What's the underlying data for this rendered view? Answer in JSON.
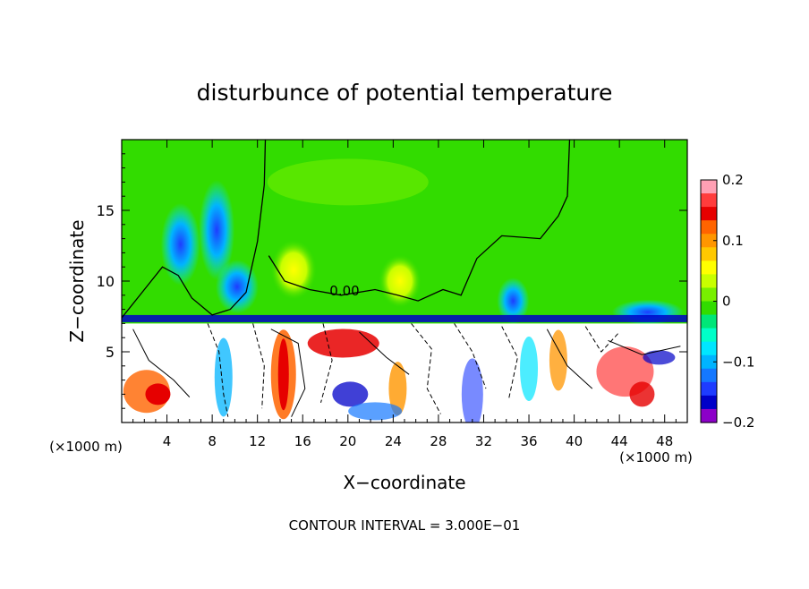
{
  "chart_data": {
    "type": "heatmap",
    "title": "disturbunce of potential temperature",
    "xlabel": "X−coordinate",
    "ylabel": "Z−coordinate",
    "x_unit": "(×1000 m)",
    "y_unit": "(×1000 m)",
    "xlim": [
      0,
      50
    ],
    "ylim": [
      0,
      20
    ],
    "x_ticks": [
      4,
      8,
      12,
      16,
      20,
      24,
      28,
      32,
      36,
      40,
      44,
      48
    ],
    "x_tick_labels": [
      "4",
      "8",
      "12",
      "16",
      "20",
      "24",
      "28",
      "32",
      "36",
      "40",
      "44",
      "48"
    ],
    "y_ticks": [
      5,
      10,
      15
    ],
    "y_tick_labels": [
      "5",
      "10",
      "15"
    ],
    "contour_label": "0.00",
    "footer": "CONTOUR INTERVAL = 3.000E−01",
    "colorbar": {
      "min": -0.2,
      "max": 0.2,
      "ticks": [
        0.2,
        0.1,
        0,
        -0.1,
        -0.2
      ],
      "tick_labels": [
        "0.2",
        "0.1",
        "0",
        "−0.1",
        "−0.2"
      ],
      "colors": [
        "#ffa0b4",
        "#ff3c3c",
        "#e60000",
        "#ff6400",
        "#ff9600",
        "#ffc800",
        "#ffff00",
        "#c8ff00",
        "#78f000",
        "#32dc00",
        "#00e678",
        "#00ffc8",
        "#00e6ff",
        "#00b4ff",
        "#1478ff",
        "#1e3cff",
        "#0000c8",
        "#8c00c8"
      ]
    }
  }
}
